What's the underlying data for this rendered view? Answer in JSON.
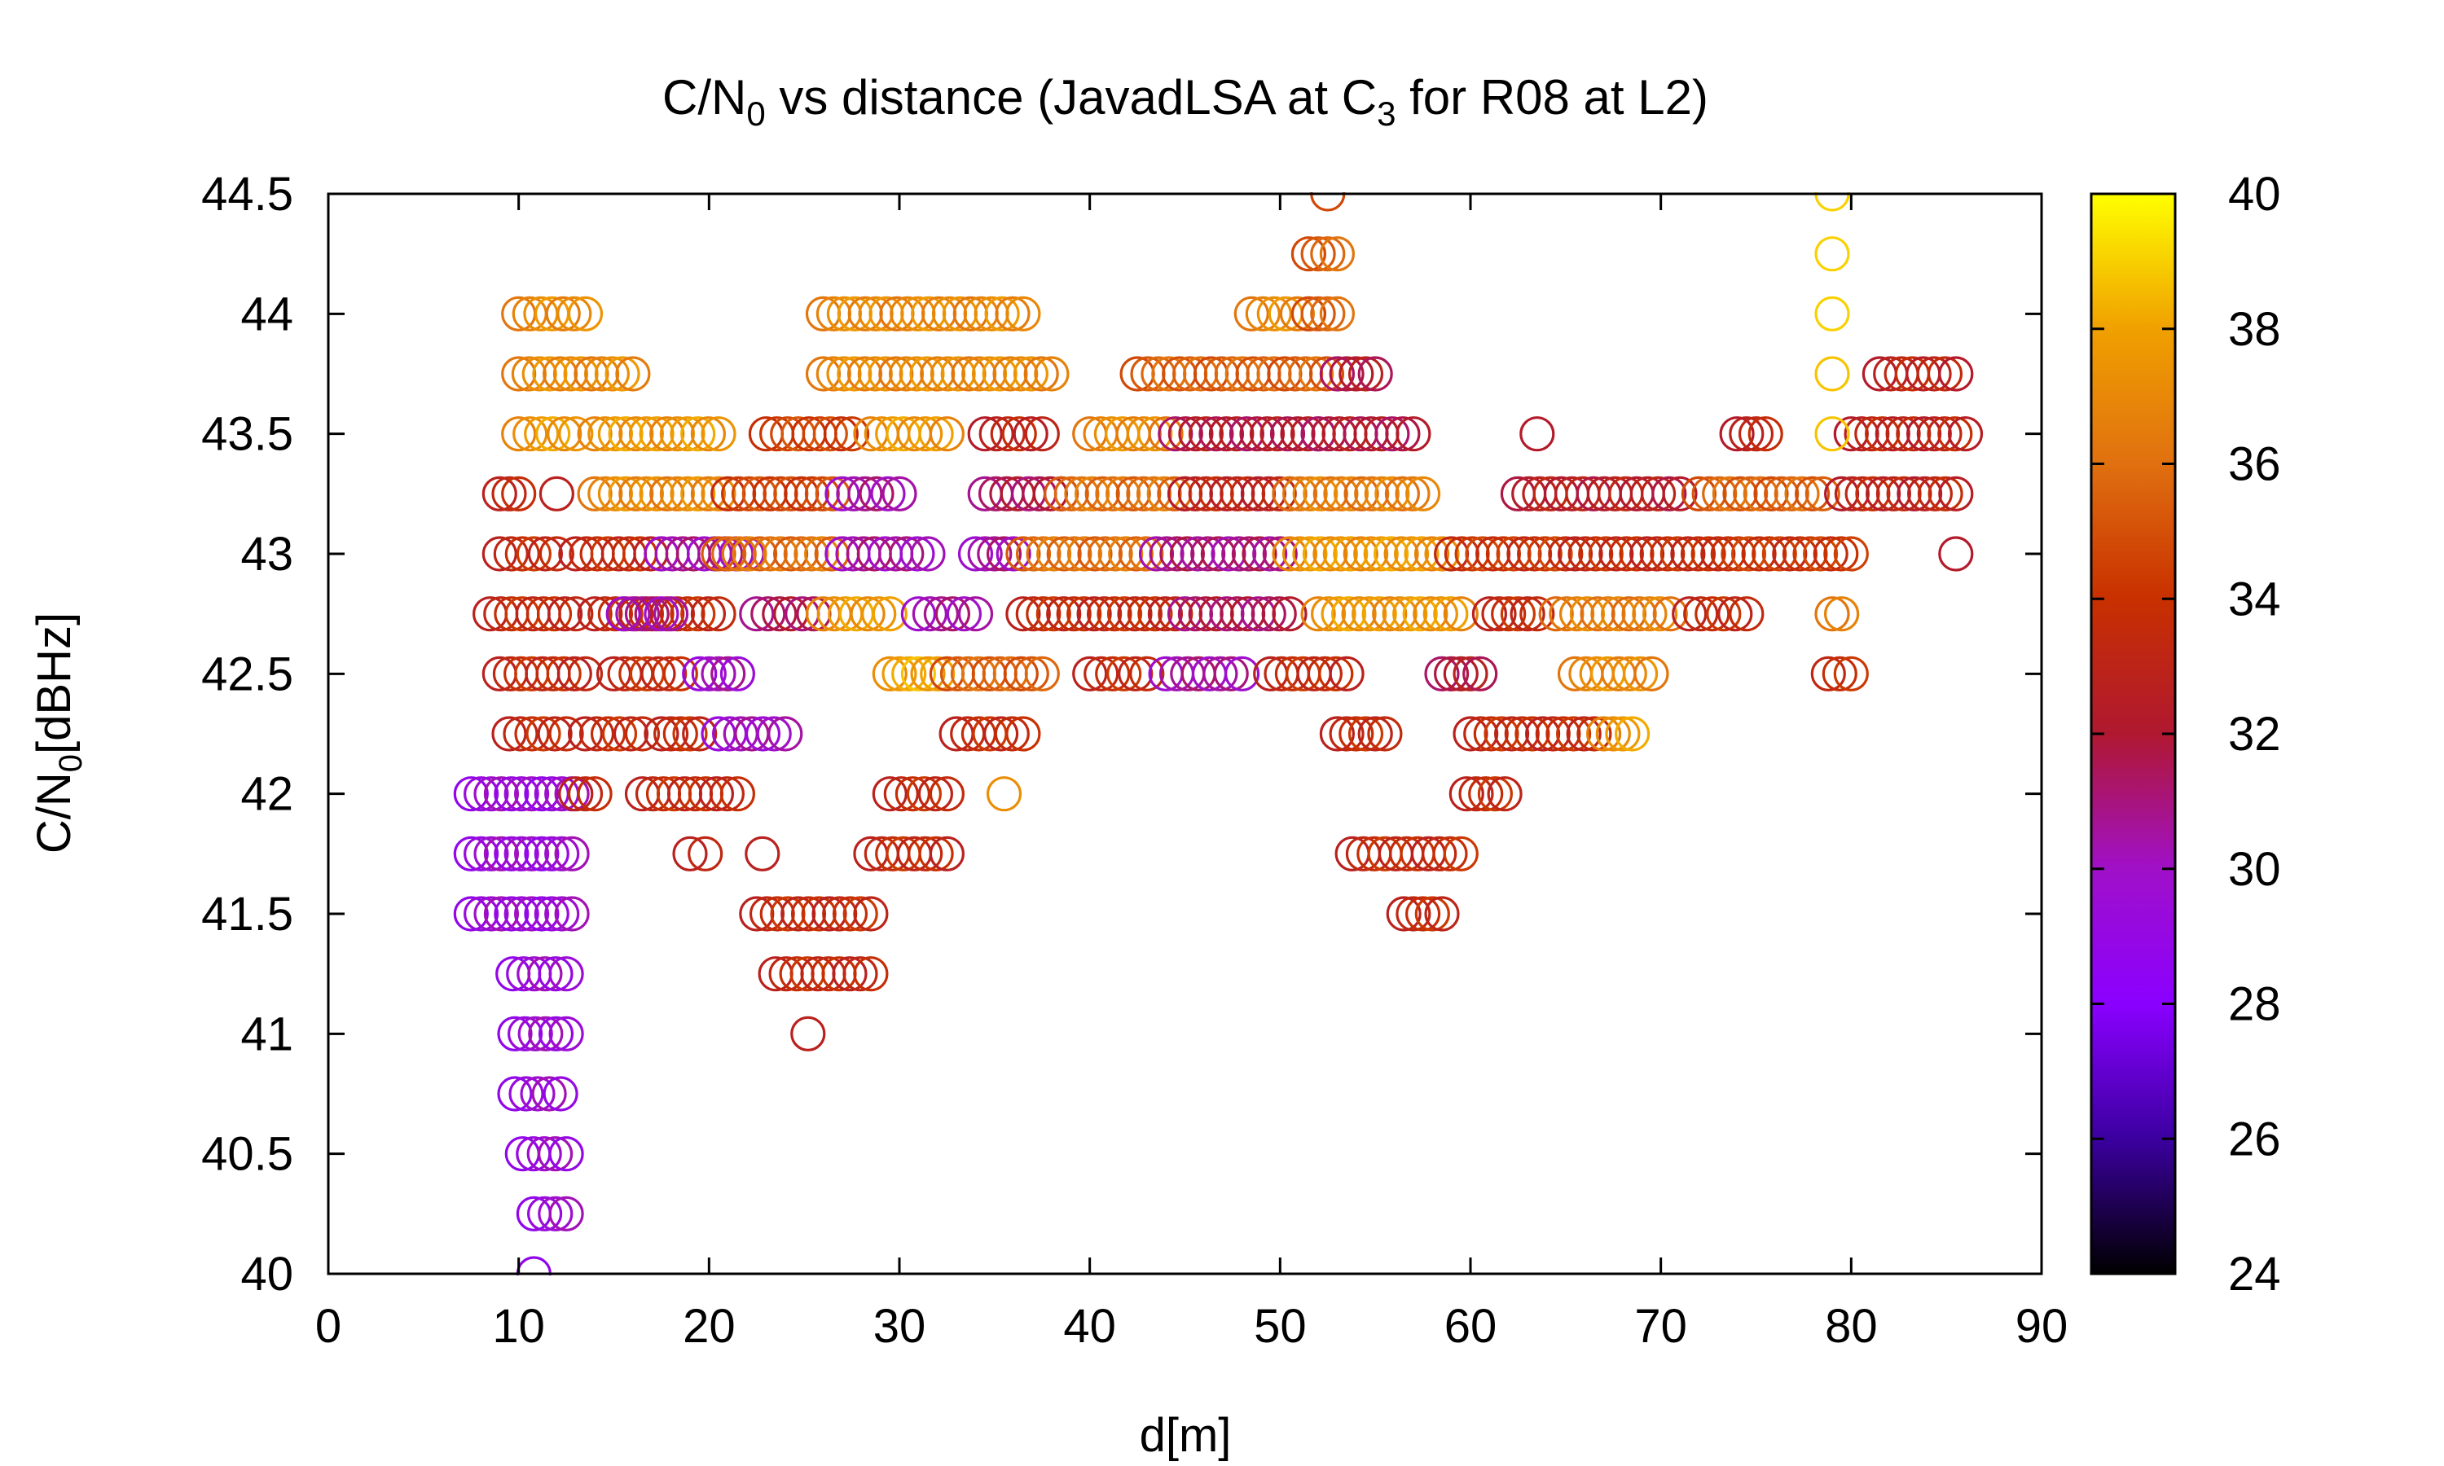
{
  "chart_data": {
    "type": "scatter",
    "title": {
      "prefix": "C/N",
      "sub1": "0",
      "middle": " vs distance (JavadLSA at C",
      "sub2": "3",
      "suffix": " for R08 at L2)"
    },
    "xlabel": "d[m]",
    "ylabel": {
      "prefix": "C/N",
      "sub": "0",
      "suffix": "[dBHz]"
    },
    "xlim": [
      0,
      90
    ],
    "ylim": [
      40,
      44.5
    ],
    "x_ticks": [
      "0",
      "10",
      "20",
      "30",
      "40",
      "50",
      "60",
      "70",
      "80",
      "90"
    ],
    "y_ticks": [
      "40",
      "40.5",
      "41",
      "41.5",
      "42",
      "42.5",
      "43",
      "43.5",
      "44",
      "44.5"
    ],
    "colorbar": {
      "range": [
        24,
        40
      ],
      "ticks": [
        "24",
        "26",
        "28",
        "30",
        "32",
        "34",
        "36",
        "38",
        "40"
      ],
      "palette": [
        "#000000",
        "#3b00a0",
        "#8a00ff",
        "#a010c8",
        "#b01830",
        "#c83000",
        "#e07010",
        "#f0a000",
        "#ffff00"
      ]
    },
    "marker": "open-circle",
    "groups": [
      {
        "y": 40.0,
        "x": [
          [
            10.8,
            10.8
          ]
        ],
        "c": 29.5
      },
      {
        "y": 40.25,
        "x": [
          [
            10.8,
            12.5
          ]
        ],
        "c": 29.5
      },
      {
        "y": 40.5,
        "x": [
          [
            10.2,
            12.5
          ]
        ],
        "c": 29.5
      },
      {
        "y": 40.75,
        "x": [
          [
            9.8,
            12.2
          ]
        ],
        "c": 29.5
      },
      {
        "y": 41.0,
        "x": [
          [
            9.8,
            12.5
          ]
        ],
        "c": 29.5
      },
      {
        "y": 41.0,
        "x": [
          [
            25.2,
            25.2
          ]
        ],
        "c": 33.5
      },
      {
        "y": 41.25,
        "x": [
          [
            9.7,
            12.5
          ]
        ],
        "c": 29.5
      },
      {
        "y": 41.25,
        "x": [
          [
            23.5,
            28.5
          ]
        ],
        "c": 33.5
      },
      {
        "y": 41.5,
        "x": [
          [
            7.5,
            12.8
          ]
        ],
        "c": 29.5
      },
      {
        "y": 41.5,
        "x": [
          [
            22.5,
            28.5
          ]
        ],
        "c": 33.5
      },
      {
        "y": 41.5,
        "x": [
          [
            56.5,
            58.5
          ]
        ],
        "c": 33.5
      },
      {
        "y": 41.75,
        "x": [
          [
            7.5,
            12.8
          ]
        ],
        "c": 29.5
      },
      {
        "y": 41.75,
        "x": [
          [
            19.0,
            19.8
          ],
          [
            22.8,
            22.8
          ],
          [
            28.5,
            32.5
          ]
        ],
        "c": 33.5
      },
      {
        "y": 41.75,
        "x": [
          [
            53.8,
            59.5
          ]
        ],
        "c": 33.5
      },
      {
        "y": 42.0,
        "x": [
          [
            7.5,
            12.8
          ]
        ],
        "c": 29.5
      },
      {
        "y": 42.0,
        "x": [
          [
            13.0,
            14.0
          ],
          [
            16.5,
            21.5
          ],
          [
            29.5,
            32.5
          ]
        ],
        "c": 33.5
      },
      {
        "y": 42.0,
        "x": [
          [
            35.5,
            35.5
          ]
        ],
        "c": 38.0
      },
      {
        "y": 42.0,
        "x": [
          [
            59.8,
            61.8
          ]
        ],
        "c": 33.5
      },
      {
        "y": 42.25,
        "x": [
          [
            9.5,
            12.5
          ],
          [
            13.5,
            16.5
          ],
          [
            17.5,
            19.5
          ]
        ],
        "c": 33.5
      },
      {
        "y": 42.25,
        "x": [
          [
            20.5,
            24.0
          ]
        ],
        "c": 30.0
      },
      {
        "y": 42.25,
        "x": [
          [
            33.0,
            36.5
          ]
        ],
        "c": 33.5
      },
      {
        "y": 42.25,
        "x": [
          [
            53.0,
            55.5
          ],
          [
            60.0,
            66.5
          ]
        ],
        "c": 33.5
      },
      {
        "y": 42.25,
        "x": [
          [
            67.0,
            68.5
          ]
        ],
        "c": 37.5
      },
      {
        "y": 42.5,
        "x": [
          [
            9.0,
            13.5
          ],
          [
            15.0,
            18.5
          ]
        ],
        "c": 33.5
      },
      {
        "y": 42.5,
        "x": [
          [
            19.5,
            21.5
          ]
        ],
        "c": 30.0
      },
      {
        "y": 42.5,
        "x": [
          [
            29.5,
            32.0
          ]
        ],
        "c": 38.0
      },
      {
        "y": 42.5,
        "x": [
          [
            32.5,
            37.5
          ]
        ],
        "c": 35.5
      },
      {
        "y": 42.5,
        "x": [
          [
            40.0,
            43.0
          ]
        ],
        "c": 33.5
      },
      {
        "y": 42.5,
        "x": [
          [
            44.0,
            48.0
          ]
        ],
        "c": 30.5
      },
      {
        "y": 42.5,
        "x": [
          [
            49.5,
            53.5
          ]
        ],
        "c": 33.5
      },
      {
        "y": 42.5,
        "x": [
          [
            58.5,
            60.5
          ]
        ],
        "c": 32.0
      },
      {
        "y": 42.5,
        "x": [
          [
            65.5,
            69.5
          ]
        ],
        "c": 37.0
      },
      {
        "y": 42.5,
        "x": [
          [
            78.8,
            80.0
          ]
        ],
        "c": 34.0
      },
      {
        "y": 42.75,
        "x": [
          [
            8.5,
            13.0
          ],
          [
            14.0,
            20.5
          ]
        ],
        "c": 33.5
      },
      {
        "y": 42.75,
        "x": [
          [
            15.5,
            18.0
          ]
        ],
        "c": 30.5
      },
      {
        "y": 42.75,
        "x": [
          [
            22.5,
            25.5
          ]
        ],
        "c": 31.5
      },
      {
        "y": 42.75,
        "x": [
          [
            26.0,
            29.5
          ]
        ],
        "c": 37.5
      },
      {
        "y": 42.75,
        "x": [
          [
            31.0,
            34.0
          ]
        ],
        "c": 30.5
      },
      {
        "y": 42.75,
        "x": [
          [
            36.5,
            44.5
          ]
        ],
        "c": 33.5
      },
      {
        "y": 42.75,
        "x": [
          [
            45.0,
            50.5
          ]
        ],
        "c": 31.5
      },
      {
        "y": 42.75,
        "x": [
          [
            52.0,
            59.5
          ]
        ],
        "c": 37.5
      },
      {
        "y": 42.75,
        "x": [
          [
            61.0,
            63.5
          ]
        ],
        "c": 33.5
      },
      {
        "y": 42.75,
        "x": [
          [
            64.5,
            70.5
          ]
        ],
        "c": 36.5
      },
      {
        "y": 42.75,
        "x": [
          [
            71.5,
            74.5
          ]
        ],
        "c": 33.5
      },
      {
        "y": 42.75,
        "x": [
          [
            79.0,
            79.5
          ]
        ],
        "c": 37.0
      },
      {
        "y": 43.0,
        "x": [
          [
            9.0,
            12.0
          ],
          [
            13.0,
            17.5
          ]
        ],
        "c": 33.5
      },
      {
        "y": 43.0,
        "x": [
          [
            17.5,
            22.0
          ]
        ],
        "c": 30.5
      },
      {
        "y": 43.0,
        "x": [
          [
            20.5,
            27.0
          ]
        ],
        "c": 36.0
      },
      {
        "y": 43.0,
        "x": [
          [
            27.0,
            31.5
          ]
        ],
        "c": 30.5
      },
      {
        "y": 43.0,
        "x": [
          [
            34.0,
            36.0
          ]
        ],
        "c": 30.5
      },
      {
        "y": 43.0,
        "x": [
          [
            36.5,
            43.5
          ]
        ],
        "c": 36.0
      },
      {
        "y": 43.0,
        "x": [
          [
            43.5,
            50.0
          ]
        ],
        "c": 31.0
      },
      {
        "y": 43.0,
        "x": [
          [
            50.5,
            58.5
          ]
        ],
        "c": 37.5
      },
      {
        "y": 43.0,
        "x": [
          [
            59.0,
            65.0
          ]
        ],
        "c": 34.0
      },
      {
        "y": 43.0,
        "x": [
          [
            65.5,
            72.5
          ]
        ],
        "c": 33.5
      },
      {
        "y": 43.0,
        "x": [
          [
            73.0,
            80.0
          ]
        ],
        "c": 34.0
      },
      {
        "y": 43.0,
        "x": [
          [
            85.5,
            85.5
          ]
        ],
        "c": 33.0
      },
      {
        "y": 43.25,
        "x": [
          [
            9.0,
            10.0
          ],
          [
            12.0,
            12.0
          ]
        ],
        "c": 33.5
      },
      {
        "y": 43.25,
        "x": [
          [
            14.0,
            20.5
          ]
        ],
        "c": 37.0
      },
      {
        "y": 43.25,
        "x": [
          [
            21.0,
            26.5
          ]
        ],
        "c": 34.5
      },
      {
        "y": 43.25,
        "x": [
          [
            27.0,
            30.0
          ]
        ],
        "c": 30.5
      },
      {
        "y": 43.25,
        "x": [
          [
            34.5,
            38.5
          ]
        ],
        "c": 31.5
      },
      {
        "y": 43.25,
        "x": [
          [
            38.5,
            45.0
          ]
        ],
        "c": 36.0
      },
      {
        "y": 43.25,
        "x": [
          [
            45.0,
            50.5
          ]
        ],
        "c": 33.0
      },
      {
        "y": 43.25,
        "x": [
          [
            50.5,
            57.5
          ]
        ],
        "c": 36.5
      },
      {
        "y": 43.25,
        "x": [
          [
            62.5,
            71.0
          ]
        ],
        "c": 32.5
      },
      {
        "y": 43.25,
        "x": [
          [
            72.0,
            78.5
          ]
        ],
        "c": 35.5
      },
      {
        "y": 43.25,
        "x": [
          [
            79.5,
            85.5
          ]
        ],
        "c": 33.0
      },
      {
        "y": 43.5,
        "x": [
          [
            10.0,
            13.0
          ]
        ],
        "c": 37.5
      },
      {
        "y": 43.5,
        "x": [
          [
            14.0,
            20.5
          ]
        ],
        "c": 37.5
      },
      {
        "y": 43.5,
        "x": [
          [
            23.0,
            27.5
          ]
        ],
        "c": 34.5
      },
      {
        "y": 43.5,
        "x": [
          [
            28.5,
            32.5
          ]
        ],
        "c": 37.5
      },
      {
        "y": 43.5,
        "x": [
          [
            34.5,
            37.5
          ]
        ],
        "c": 33.0
      },
      {
        "y": 43.5,
        "x": [
          [
            40.0,
            44.0
          ]
        ],
        "c": 37.0
      },
      {
        "y": 43.5,
        "x": [
          [
            44.5,
            52.0
          ]
        ],
        "c": 32.0
      },
      {
        "y": 43.5,
        "x": [
          [
            52.0,
            57.0
          ]
        ],
        "c": 32.0
      },
      {
        "y": 43.5,
        "x": [
          [
            63.5,
            63.5
          ]
        ],
        "c": 33.0
      },
      {
        "y": 43.5,
        "x": [
          [
            74.0,
            75.5
          ],
          [
            80.0,
            86.0
          ]
        ],
        "c": 33.0
      },
      {
        "y": 43.5,
        "x": [
          [
            79.0,
            79.0
          ]
        ],
        "c": 39.5
      },
      {
        "y": 43.75,
        "x": [
          [
            10.0,
            16.0
          ]
        ],
        "c": 37.0
      },
      {
        "y": 43.75,
        "x": [
          [
            26.0,
            38.0
          ]
        ],
        "c": 37.0
      },
      {
        "y": 43.75,
        "x": [
          [
            42.5,
            53.0
          ]
        ],
        "c": 35.5
      },
      {
        "y": 43.75,
        "x": [
          [
            53.0,
            55.0
          ]
        ],
        "c": 32.0
      },
      {
        "y": 43.75,
        "x": [
          [
            81.5,
            85.5
          ]
        ],
        "c": 33.0
      },
      {
        "y": 43.75,
        "x": [
          [
            79.0,
            79.0
          ]
        ],
        "c": 39.5
      },
      {
        "y": 44.0,
        "x": [
          [
            10.0,
            13.5
          ]
        ],
        "c": 37.0
      },
      {
        "y": 44.0,
        "x": [
          [
            26.0,
            36.5
          ]
        ],
        "c": 37.0
      },
      {
        "y": 44.0,
        "x": [
          [
            48.5,
            51.5
          ]
        ],
        "c": 37.0
      },
      {
        "y": 44.0,
        "x": [
          [
            51.5,
            53.0
          ]
        ],
        "c": 35.5
      },
      {
        "y": 44.0,
        "x": [
          [
            79.0,
            79.0
          ]
        ],
        "c": 39.8
      },
      {
        "y": 44.25,
        "x": [
          [
            51.5,
            53.0
          ]
        ],
        "c": 35.5
      },
      {
        "y": 44.25,
        "x": [
          [
            79.0,
            79.0
          ]
        ],
        "c": 39.8
      },
      {
        "y": 44.5,
        "x": [
          [
            52.5,
            52.5
          ]
        ],
        "c": 35.5
      },
      {
        "y": 44.5,
        "x": [
          [
            79.0,
            79.0
          ]
        ],
        "c": 39.8
      }
    ]
  }
}
